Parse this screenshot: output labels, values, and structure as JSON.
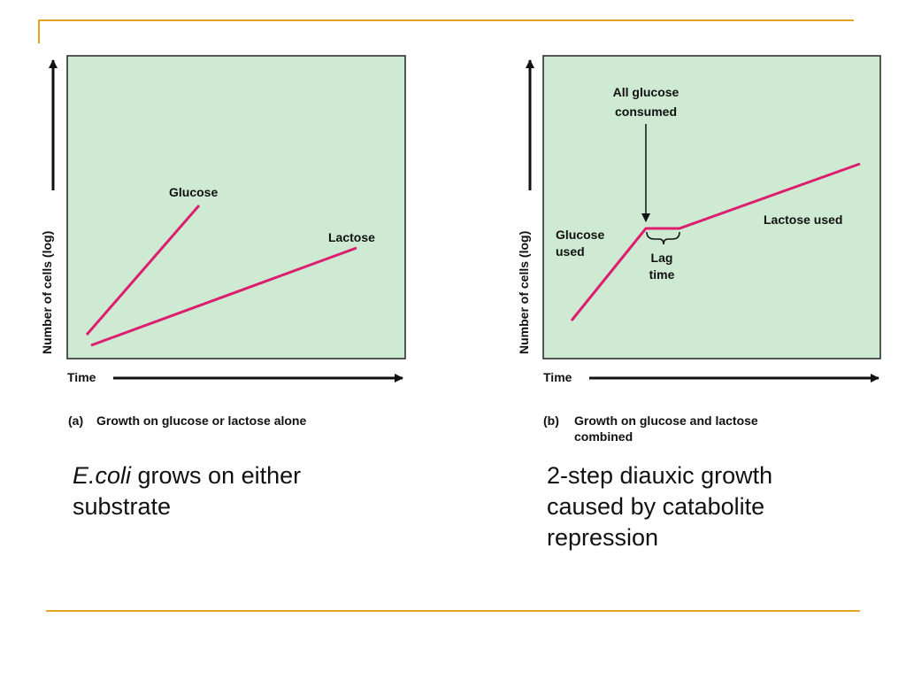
{
  "panel_a": {
    "y_axis_label": "Number of cells (log)",
    "x_axis_label": "Time",
    "curve_glucose": "Glucose",
    "curve_lactose": "Lactose",
    "caption_tag": "(a)",
    "caption_text": "Growth on glucose or lactose alone"
  },
  "panel_b": {
    "y_axis_label": "Number of cells (log)",
    "x_axis_label": "Time",
    "annotation_line1": "All glucose",
    "annotation_line2": "consumed",
    "glucose_used_line1": "Glucose",
    "glucose_used_line2": "used",
    "lag_line1": "Lag",
    "lag_line2": "time",
    "lactose_used": "Lactose used",
    "caption_tag": "(b)",
    "caption_line1": "Growth on glucose and lactose",
    "caption_line2": "combined"
  },
  "notes": {
    "left_italic": "E.coli",
    "left_rest": " grows on either substrate",
    "right": "2-step diauxic growth caused by catabolite repression"
  },
  "colors": {
    "plot_fill": "#cfead3",
    "curve": "#dc1e6e",
    "accent_rule": "#e6a223"
  }
}
